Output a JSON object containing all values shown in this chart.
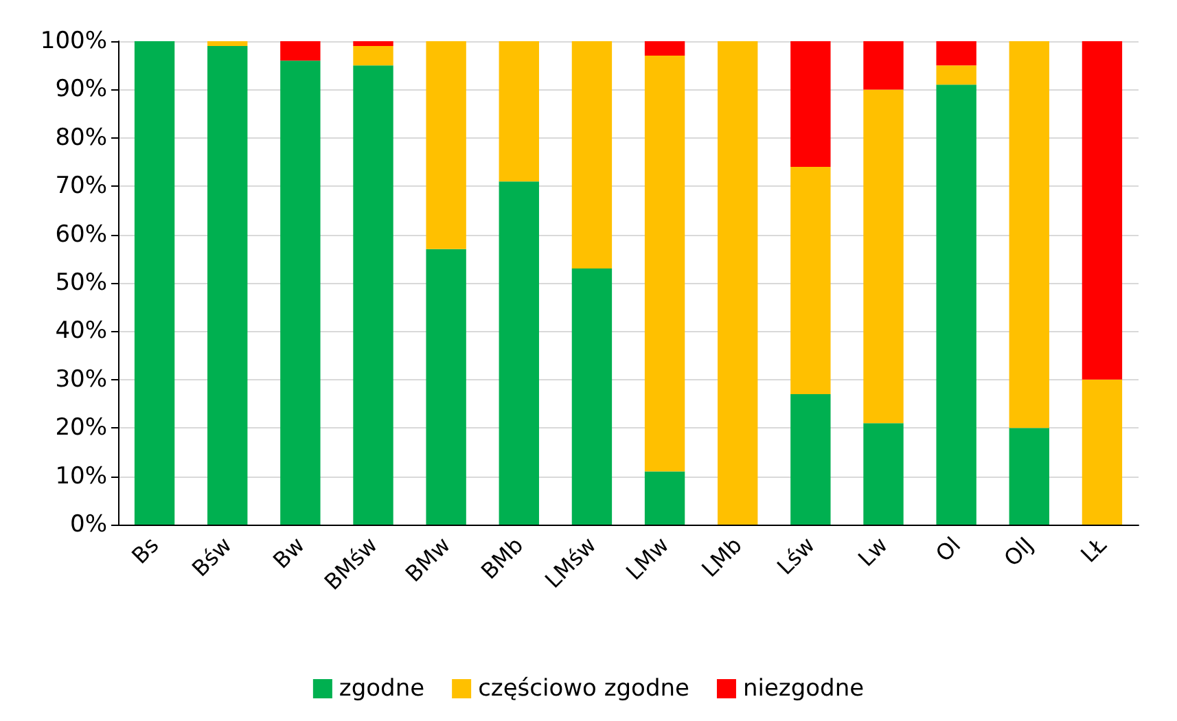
{
  "chart_data": {
    "type": "bar",
    "stacked": true,
    "categories": [
      "Bs",
      "Bśw",
      "Bw",
      "BMśw",
      "BMw",
      "BMb",
      "LMśw",
      "LMw",
      "LMb",
      "Lśw",
      "Lw",
      "Ol",
      "OlJ",
      "LŁ"
    ],
    "series": [
      {
        "name": "zgodne",
        "color": "#00b050",
        "values": [
          100,
          99,
          96,
          95,
          57,
          71,
          53,
          11,
          0,
          27,
          21,
          91,
          20,
          0
        ]
      },
      {
        "name": "częściowo zgodne",
        "color": "#ffc000",
        "values": [
          0,
          1,
          0,
          4,
          43,
          29,
          47,
          86,
          100,
          47,
          69,
          4,
          80,
          30
        ]
      },
      {
        "name": "niezgodne",
        "color": "#ff0000",
        "values": [
          0,
          0,
          4,
          1,
          0,
          0,
          0,
          3,
          0,
          26,
          10,
          5,
          0,
          70
        ]
      }
    ],
    "ylim": [
      0,
      100
    ],
    "yticks": [
      {
        "value": 0,
        "label": "0%"
      },
      {
        "value": 10,
        "label": "10%"
      },
      {
        "value": 20,
        "label": "20%"
      },
      {
        "value": 30,
        "label": "30%"
      },
      {
        "value": 40,
        "label": "40%"
      },
      {
        "value": 50,
        "label": "50%"
      },
      {
        "value": 60,
        "label": "60%"
      },
      {
        "value": 70,
        "label": "70%"
      },
      {
        "value": 80,
        "label": "80%"
      },
      {
        "value": 90,
        "label": "90%"
      },
      {
        "value": 100,
        "label": "100%"
      }
    ],
    "grid": "y",
    "legend": "bottom"
  }
}
